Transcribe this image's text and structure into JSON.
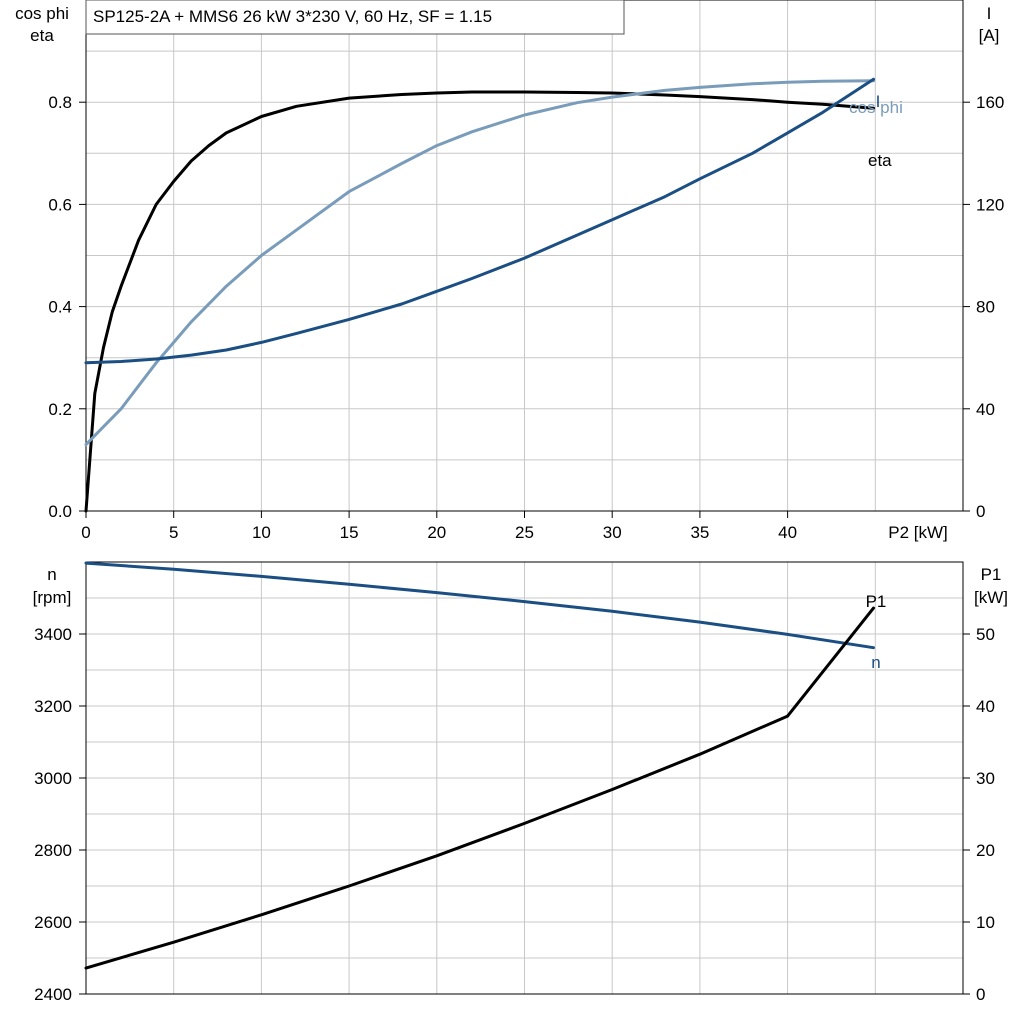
{
  "chart_data": [
    {
      "type": "line",
      "title": "SP125-2A + MMS6   26 kW   3*230 V, 60 Hz, SF = 1.15",
      "xlabel": "P2 [kW]",
      "ylabel_left": [
        "cos phi",
        "eta"
      ],
      "ylabel_right": [
        "I",
        "[A]"
      ],
      "xlim": [
        0,
        50
      ],
      "xticks": [
        0,
        5,
        10,
        15,
        20,
        25,
        30,
        35,
        40
      ],
      "ylim_left": [
        0,
        1.0
      ],
      "yticks_left": [
        "0.0",
        "0.2",
        "0.4",
        "0.6",
        "0.8"
      ],
      "ylim_right": [
        0,
        200
      ],
      "yticks_right": [
        "0",
        "40",
        "80",
        "120",
        "160"
      ],
      "grid": true,
      "series": [
        {
          "name": "eta",
          "axis": "left",
          "color": "#000000",
          "x": [
            0,
            0.5,
            1,
            1.5,
            2,
            3,
            4,
            5,
            6,
            7,
            8,
            10,
            12,
            15,
            18,
            20,
            22,
            25,
            28,
            30,
            33,
            35,
            38,
            40,
            42,
            44.9
          ],
          "y": [
            0,
            0.23,
            0.32,
            0.39,
            0.44,
            0.53,
            0.6,
            0.645,
            0.685,
            0.715,
            0.74,
            0.772,
            0.792,
            0.808,
            0.815,
            0.818,
            0.82,
            0.82,
            0.819,
            0.818,
            0.814,
            0.811,
            0.805,
            0.8,
            0.796,
            0.788
          ]
        },
        {
          "name": "cos phi",
          "axis": "left",
          "color": "#7a9cbb",
          "x": [
            0,
            1,
            2,
            3,
            4,
            5,
            6,
            8,
            10,
            12,
            15,
            18,
            20,
            22,
            25,
            28,
            30,
            33,
            35,
            38,
            40,
            42,
            44.9
          ],
          "y": [
            0.13,
            0.165,
            0.2,
            0.245,
            0.29,
            0.33,
            0.37,
            0.44,
            0.5,
            0.55,
            0.625,
            0.68,
            0.715,
            0.742,
            0.775,
            0.799,
            0.81,
            0.823,
            0.829,
            0.836,
            0.839,
            0.841,
            0.842
          ]
        },
        {
          "name": "I",
          "axis": "right",
          "color": "#1b4f83",
          "x": [
            0,
            2,
            4,
            6,
            8,
            10,
            12,
            15,
            18,
            20,
            22,
            25,
            28,
            30,
            33,
            35,
            38,
            40,
            42,
            44.9
          ],
          "y": [
            58,
            58.5,
            59.5,
            61,
            63,
            66,
            69.5,
            75,
            81,
            86,
            91,
            99,
            108,
            114,
            123,
            130,
            140,
            148,
            156,
            169
          ]
        }
      ],
      "annotations": [
        "eta",
        "cos phi",
        "I"
      ]
    },
    {
      "type": "line",
      "xlabel": "",
      "ylabel_left": [
        "n",
        "[rpm]"
      ],
      "ylabel_right": [
        "P1",
        "[kW]"
      ],
      "xlim": [
        0,
        50
      ],
      "ylim_left": [
        2400,
        3600
      ],
      "yticks_left": [
        "2400",
        "2600",
        "2800",
        "3000",
        "3200",
        "3400"
      ],
      "ylim_right": [
        0,
        60
      ],
      "yticks_right": [
        "0",
        "10",
        "20",
        "30",
        "40",
        "50"
      ],
      "grid": true,
      "series": [
        {
          "name": "n",
          "axis": "left",
          "color": "#1b4f83",
          "x": [
            0,
            5,
            10,
            15,
            20,
            25,
            30,
            35,
            40,
            44.9
          ],
          "y": [
            3597,
            3580,
            3560,
            3538,
            3515,
            3490,
            3463,
            3433,
            3399,
            3362
          ]
        },
        {
          "name": "P1",
          "axis": "right",
          "color": "#000000",
          "x": [
            0,
            5,
            10,
            15,
            20,
            25,
            30,
            35,
            40,
            44.9
          ],
          "y": [
            3.6,
            7.2,
            11,
            15,
            19.2,
            23.7,
            28.4,
            33.3,
            38.6,
            53.6
          ]
        }
      ],
      "annotations": [
        "P1",
        "n"
      ]
    }
  ]
}
